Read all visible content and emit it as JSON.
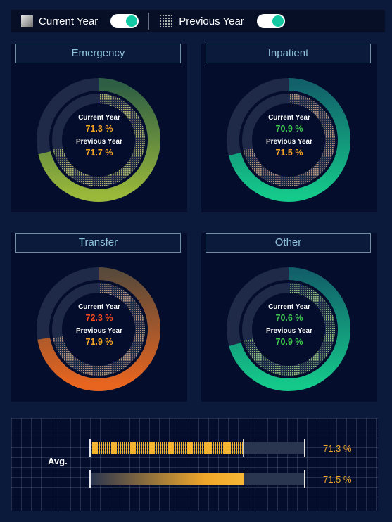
{
  "legend": {
    "current_label": "Current Year",
    "previous_label": "Previous Year",
    "current_toggle_on": true,
    "previous_toggle_on": true
  },
  "colors": {
    "track": "#1e2a47",
    "value_orange": "#f6a623",
    "value_green": "#3ec94e",
    "value_red": "#ff4a1c"
  },
  "chart_data": [
    {
      "type": "donut",
      "title": "Emergency",
      "series": [
        {
          "name": "Current Year",
          "value": 71.3,
          "label": "71.3 %",
          "color": "orange"
        },
        {
          "name": "Previous Year",
          "value": 71.7,
          "label": "71.7 %",
          "color": "orange"
        }
      ],
      "gradient": [
        "#2e5e44",
        "#9ab83a"
      ],
      "dot_color": "#b5b36a"
    },
    {
      "type": "donut",
      "title": "Inpatient",
      "series": [
        {
          "name": "Current Year",
          "value": 70.9,
          "label": "70.9 %",
          "color": "green"
        },
        {
          "name": "Previous Year",
          "value": 71.5,
          "label": "71.5 %",
          "color": "orange"
        }
      ],
      "gradient": [
        "#12616a",
        "#14c98a"
      ],
      "dot_color": "#b8967a"
    },
    {
      "type": "donut",
      "title": "Transfer",
      "series": [
        {
          "name": "Current Year",
          "value": 72.3,
          "label": "72.3 %",
          "color": "red"
        },
        {
          "name": "Previous Year",
          "value": 71.9,
          "label": "71.9 %",
          "color": "orange"
        }
      ],
      "gradient": [
        "#5a4a3a",
        "#e8651f"
      ],
      "dot_color": "#b8967a"
    },
    {
      "type": "donut",
      "title": "Other",
      "series": [
        {
          "name": "Current Year",
          "value": 70.6,
          "label": "70.6 %",
          "color": "green"
        },
        {
          "name": "Previous Year",
          "value": 70.9,
          "label": "70.9 %",
          "color": "green"
        }
      ],
      "gradient": [
        "#12616a",
        "#14c98a"
      ],
      "dot_color": "#8ec27a"
    },
    {
      "type": "bar",
      "title": "Avg.",
      "series": [
        {
          "name": "Current Year",
          "value": 71.3,
          "label": "71.3 %",
          "style": "dotted"
        },
        {
          "name": "Previous Year",
          "value": 71.5,
          "label": "71.5 %",
          "style": "solid"
        }
      ],
      "xlim": [
        0,
        100
      ]
    }
  ]
}
